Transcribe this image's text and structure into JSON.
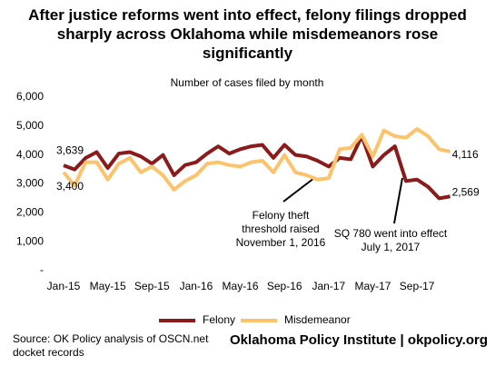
{
  "chart_data": {
    "type": "line",
    "title": "After justice reforms went into effect, felony filings dropped sharply across Oklahoma while misdemeanors rose significantly",
    "subtitle": "Number of cases filed by month",
    "categories": [
      "Jan-15",
      null,
      null,
      null,
      "May-15",
      null,
      null,
      null,
      "Sep-15",
      null,
      null,
      null,
      "Jan-16",
      null,
      null,
      null,
      "May-16",
      null,
      null,
      null,
      "Sep-16",
      null,
      null,
      null,
      "Jan-17",
      null,
      null,
      null,
      "May-17",
      null,
      null,
      null,
      "Sep-17",
      null,
      null,
      null
    ],
    "series": [
      {
        "name": "Felony",
        "color": "#8b1a1a",
        "values": [
          3639,
          3500,
          3900,
          4100,
          3550,
          4050,
          4100,
          3950,
          3700,
          4000,
          3300,
          3650,
          3750,
          4050,
          4300,
          4050,
          4200,
          4300,
          4350,
          3900,
          4350,
          4000,
          3950,
          3800,
          3600,
          3900,
          3850,
          4650,
          3600,
          4000,
          4300,
          3100,
          3150,
          2900,
          2500,
          2569
        ],
        "value_labels": [
          "3,639",
          null,
          null,
          null,
          null,
          null,
          null,
          null,
          null,
          null,
          null,
          null,
          null,
          null,
          null,
          null,
          null,
          null,
          null,
          null,
          null,
          null,
          null,
          null,
          null,
          null,
          null,
          null,
          null,
          null,
          null,
          null,
          null,
          null,
          null,
          "2,569"
        ]
      },
      {
        "name": "Misdemeanor",
        "color": "#fbc36b",
        "values": [
          3400,
          2950,
          3750,
          3750,
          3150,
          3700,
          3900,
          3400,
          3600,
          3300,
          2800,
          3100,
          3300,
          3700,
          3750,
          3650,
          3600,
          3750,
          3800,
          3400,
          4000,
          3400,
          3300,
          3150,
          3200,
          4200,
          4250,
          4700,
          3950,
          4850,
          4650,
          4600,
          4900,
          4650,
          4200,
          4116
        ],
        "value_labels": [
          "3,400",
          null,
          null,
          null,
          null,
          null,
          null,
          null,
          null,
          null,
          null,
          null,
          null,
          null,
          null,
          null,
          null,
          null,
          null,
          null,
          null,
          null,
          null,
          null,
          null,
          null,
          null,
          null,
          null,
          null,
          null,
          null,
          null,
          null,
          null,
          "4,116"
        ]
      }
    ],
    "ylim": [
      0,
      6000
    ],
    "yticks": [
      {
        "value": 0,
        "label": "-"
      },
      {
        "value": 1000,
        "label": "1,000"
      },
      {
        "value": 2000,
        "label": "2,000"
      },
      {
        "value": 3000,
        "label": "3,000"
      },
      {
        "value": 4000,
        "label": "4,000"
      },
      {
        "value": 5000,
        "label": "5,000"
      },
      {
        "value": 6000,
        "label": "6,000"
      }
    ],
    "annotations": [
      {
        "lines": [
          "Felony theft",
          "threshold raised",
          "November 1, 2016"
        ]
      },
      {
        "lines": [
          "SQ 780 went into effect",
          "July 1, 2017"
        ]
      }
    ],
    "source": "Source: OK Policy analysis of OSCN.net docket records",
    "credit": "Oklahoma Policy Institute | okpolicy.org"
  }
}
